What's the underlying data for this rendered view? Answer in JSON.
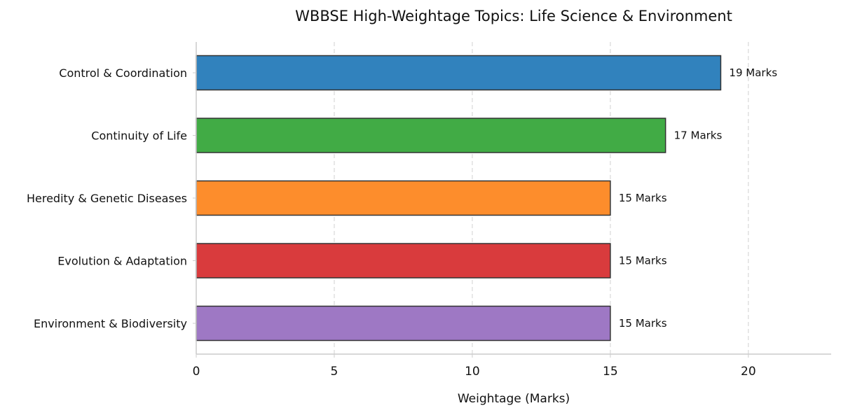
{
  "chart_data": {
    "type": "bar",
    "orientation": "horizontal",
    "title": "WBBSE High-Weightage Topics: Life Science & Environment",
    "xlabel": "Weightage (Marks)",
    "ylabel": "",
    "xlim": [
      0,
      23
    ],
    "xticks": [
      0,
      5,
      10,
      15,
      20
    ],
    "grid": "vertical dashed",
    "categories": [
      "Control & Coordination",
      "Continuity of Life",
      "Heredity & Genetic Diseases",
      "Evolution & Adaptation",
      "Environment & Biodiversity"
    ],
    "values": [
      19,
      17,
      15,
      15,
      15
    ],
    "data_labels": [
      "19 Marks",
      "17 Marks",
      "15 Marks",
      "15 Marks",
      "15 Marks"
    ],
    "colors": [
      "#3182bd",
      "#41ab45",
      "#fd8d2c",
      "#d93b3d",
      "#9e78c4"
    ]
  }
}
